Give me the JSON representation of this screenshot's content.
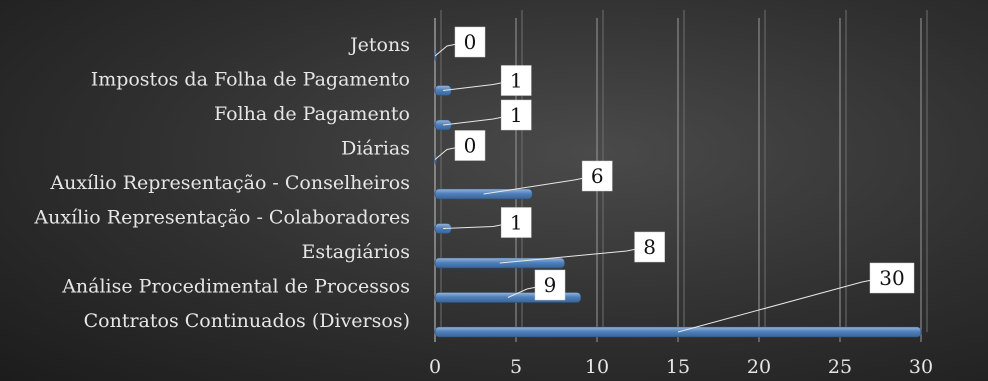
{
  "chart_data": {
    "type": "bar",
    "orientation": "horizontal",
    "categories": [
      "Jetons",
      "Impostos da Folha de Pagamento",
      "Folha de Pagamento",
      "Diárias",
      "Auxílio Representação - Conselheiros",
      "Auxílio Representação - Colaboradores",
      "Estagiários",
      "Análise Procedimental de Processos",
      "Contratos Continuados (Diversos)"
    ],
    "values": [
      0,
      1,
      1,
      0,
      6,
      1,
      8,
      9,
      30
    ],
    "xlim": [
      0,
      30
    ],
    "xticks": [
      0,
      5,
      10,
      15,
      20,
      25,
      30
    ],
    "grid": "vertical",
    "data_labels": true,
    "colors": {
      "bar": "#4f81bd",
      "bar_highlight": "#9ab6d8",
      "grid": "#9a9a9a",
      "label_box": "#ffffff"
    }
  }
}
